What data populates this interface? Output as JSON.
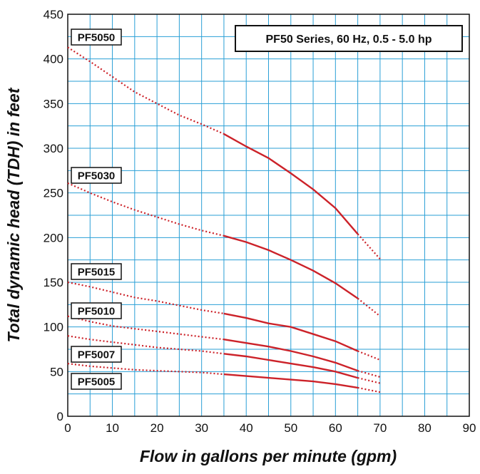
{
  "chart_data": {
    "type": "line",
    "title": "PF50 Series, 60 Hz, 0.5 - 5.0 hp",
    "xlabel": "Flow in gallons per minute (gpm)",
    "ylabel": "Total dynamic head (TDH) in feet",
    "xlim": [
      0,
      90
    ],
    "ylim": [
      0,
      450
    ],
    "x_ticks": [
      "0",
      "10",
      "20",
      "30",
      "40",
      "50",
      "60",
      "70",
      "80",
      "90"
    ],
    "y_ticks": [
      "0",
      "50",
      "100",
      "150",
      "200",
      "250",
      "300",
      "350",
      "400",
      "450"
    ],
    "grid": true,
    "recommended_range_gpm": [
      35,
      65
    ],
    "line_color": "#cc2229",
    "grid_color": "#2a9fd6",
    "series": [
      {
        "name": "PF5050",
        "x": [
          0,
          5,
          10,
          15,
          20,
          25,
          30,
          35,
          40,
          45,
          50,
          55,
          60,
          65,
          70
        ],
        "y": [
          413,
          397,
          380,
          363,
          350,
          337,
          327,
          316,
          302,
          289,
          272,
          254,
          233,
          204,
          176
        ]
      },
      {
        "name": "PF5030",
        "x": [
          0,
          5,
          10,
          15,
          20,
          25,
          30,
          35,
          40,
          45,
          50,
          55,
          60,
          65,
          70
        ],
        "y": [
          261,
          250,
          240,
          231,
          223,
          215,
          208,
          202,
          195,
          186,
          175,
          163,
          149,
          132,
          112
        ]
      },
      {
        "name": "PF5015",
        "x": [
          0,
          5,
          10,
          15,
          20,
          25,
          30,
          35,
          40,
          45,
          50,
          55,
          60,
          65,
          70
        ],
        "y": [
          150,
          145,
          139,
          133,
          129,
          124,
          119,
          115,
          110,
          104,
          100,
          92,
          84,
          73,
          63
        ]
      },
      {
        "name": "PF5010",
        "x": [
          0,
          5,
          10,
          15,
          20,
          25,
          30,
          35,
          40,
          45,
          50,
          55,
          60,
          65,
          70
        ],
        "y": [
          112,
          106,
          101,
          98,
          95,
          92,
          89,
          86,
          82,
          78,
          73,
          67,
          60,
          51,
          44
        ]
      },
      {
        "name": "PF5007",
        "x": [
          0,
          5,
          10,
          15,
          20,
          25,
          30,
          35,
          40,
          45,
          50,
          55,
          60,
          65,
          70
        ],
        "y": [
          90,
          86,
          83,
          80,
          77,
          75,
          73,
          70,
          67,
          63,
          59,
          55,
          50,
          43,
          37
        ]
      },
      {
        "name": "PF5005",
        "x": [
          0,
          5,
          10,
          15,
          20,
          25,
          30,
          35,
          40,
          45,
          50,
          55,
          60,
          65,
          70
        ],
        "y": [
          59,
          56,
          54,
          52,
          51,
          50,
          49,
          47,
          45,
          43,
          41,
          39,
          36,
          32,
          27
        ]
      }
    ]
  }
}
